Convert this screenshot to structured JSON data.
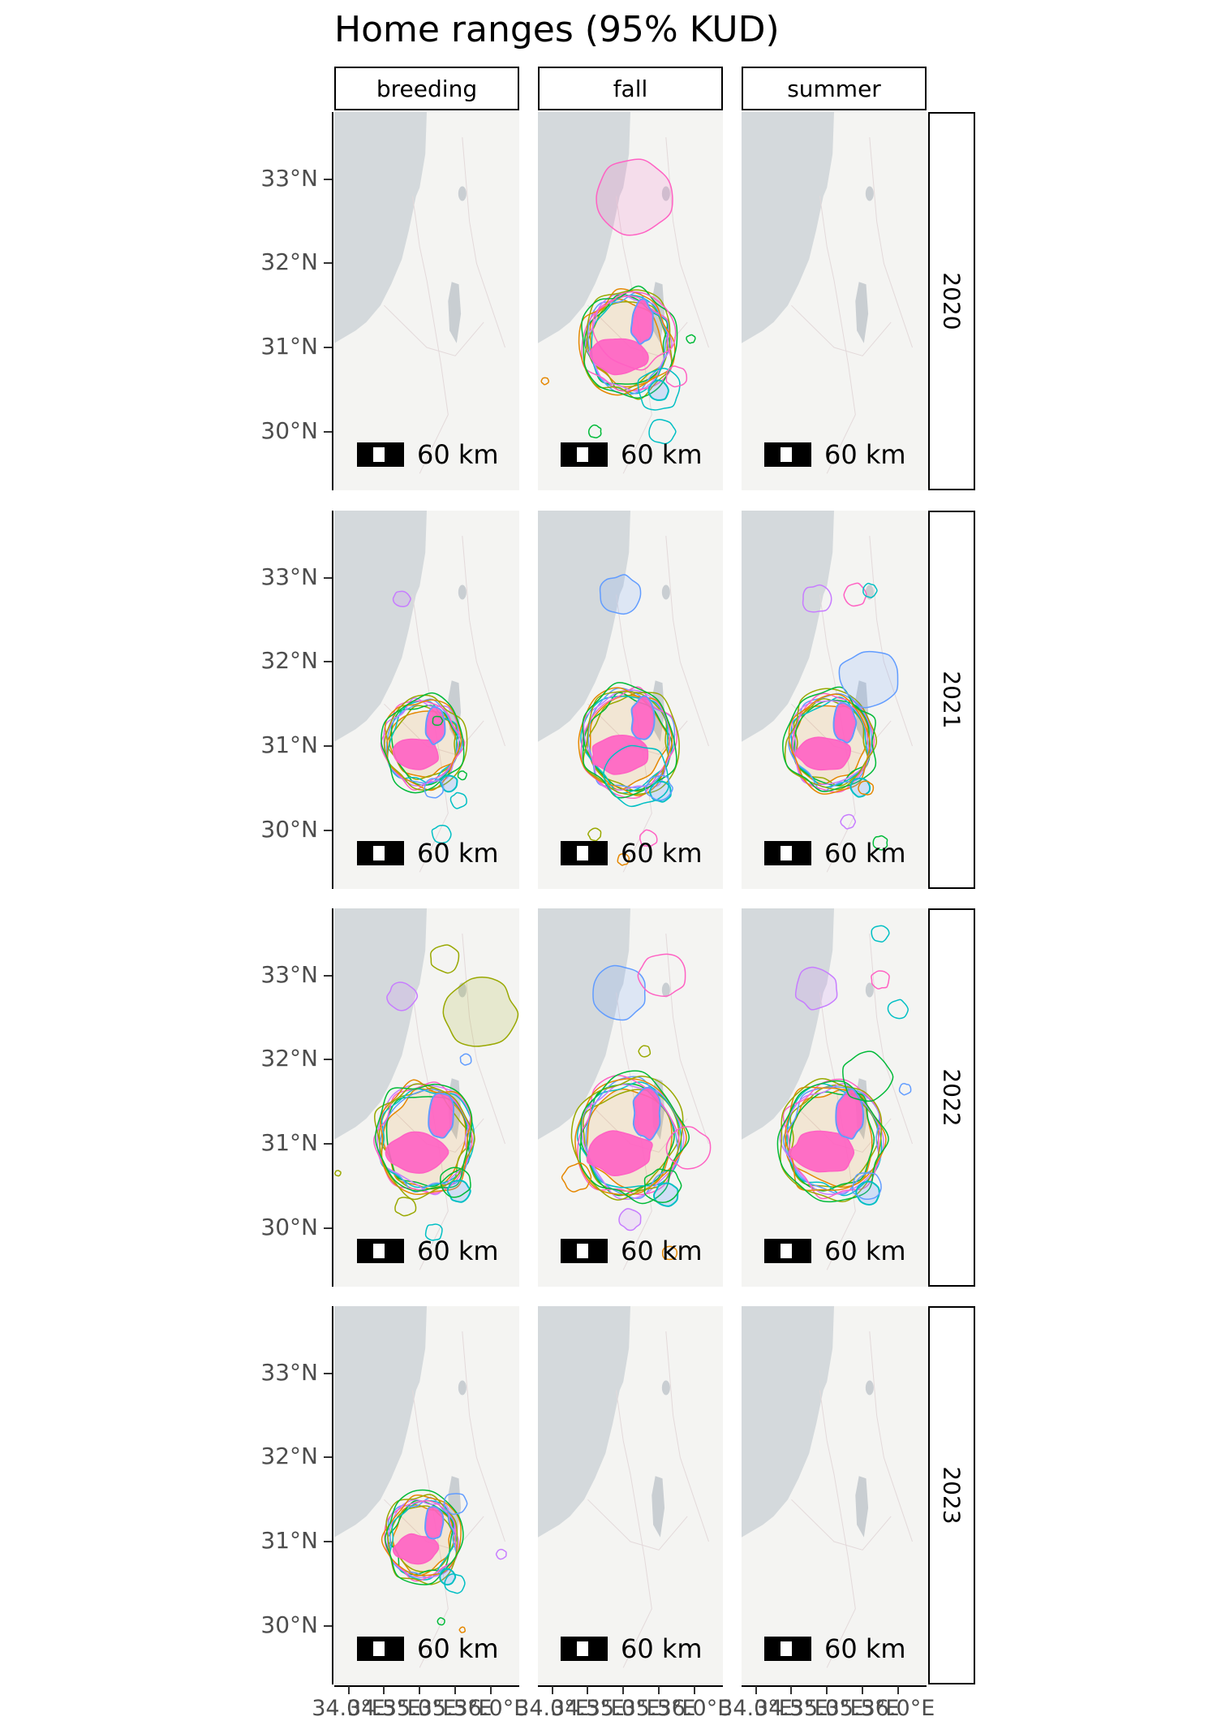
{
  "title": "Home ranges (95% KUD)",
  "facets": {
    "columns": [
      "breeding",
      "fall",
      "summer"
    ],
    "rows": [
      "2020",
      "2021",
      "2022",
      "2023"
    ]
  },
  "scalebar_label": "60 km",
  "axes": {
    "y_labels": [
      "33°N",
      "32°N",
      "31°N",
      "30°N"
    ],
    "y_values": [
      33,
      32,
      31,
      30
    ],
    "x_labels": [
      "34.0°E",
      "34.5°E",
      "35.0°E",
      "35.5°E",
      "36.0°E"
    ],
    "x_values": [
      34.0,
      34.5,
      35.0,
      35.5,
      36.0
    ]
  },
  "map": {
    "lon_range": [
      33.8,
      36.4
    ],
    "lat_range": [
      29.3,
      33.8
    ],
    "land_color": "#f4f4f2",
    "sea_color": "#d4d9dc",
    "water_body_color": "#c9ced2"
  },
  "colors": {
    "orange": "#E58700",
    "olive": "#99A800",
    "green": "#00BA38",
    "teal": "#00BFC4",
    "blue": "#619CFF",
    "purple": "#C77CFF",
    "pink": "#FF61C3",
    "core_fill": "#FF61C3"
  },
  "chart_data": {
    "type": "map",
    "title": "Home ranges (95% KUD)",
    "facet_rows": [
      "2020",
      "2021",
      "2022",
      "2023"
    ],
    "facet_columns": [
      "breeding",
      "fall",
      "summer"
    ],
    "core_range_center": {
      "lon": 34.95,
      "lat": 30.95
    },
    "scale_bar_km": 60,
    "panels": [
      {
        "row": "2020",
        "col": "breeding",
        "has_ranges": false,
        "extra_ranges": []
      },
      {
        "row": "2020",
        "col": "fall",
        "has_ranges": true,
        "core_scale": 1.0,
        "extra_ranges": [
          {
            "lon": 35.15,
            "lat": 32.8,
            "r": 0.55,
            "color": "pink",
            "fill": true
          },
          {
            "lon": 35.15,
            "lat": 31.2,
            "r": 0.55,
            "color": "pink",
            "fill": false
          },
          {
            "lon": 35.5,
            "lat": 30.5,
            "r": 0.3,
            "color": "teal",
            "fill": false
          },
          {
            "lon": 35.55,
            "lat": 30.0,
            "r": 0.18,
            "color": "teal",
            "fill": false
          },
          {
            "lon": 35.75,
            "lat": 30.65,
            "r": 0.15,
            "color": "pink",
            "fill": false
          },
          {
            "lon": 33.9,
            "lat": 30.6,
            "r": 0.05,
            "color": "orange",
            "fill": false
          },
          {
            "lon": 34.6,
            "lat": 30.0,
            "r": 0.09,
            "color": "green",
            "fill": false
          },
          {
            "lon": 35.95,
            "lat": 31.1,
            "r": 0.06,
            "color": "green",
            "fill": false
          }
        ]
      },
      {
        "row": "2020",
        "col": "summer",
        "has_ranges": false,
        "extra_ranges": []
      },
      {
        "row": "2021",
        "col": "breeding",
        "has_ranges": true,
        "core_scale": 0.85,
        "extra_ranges": [
          {
            "lon": 34.75,
            "lat": 32.75,
            "r": 0.12,
            "color": "purple",
            "fill": true
          },
          {
            "lon": 35.2,
            "lat": 30.5,
            "r": 0.14,
            "color": "blue",
            "fill": false
          },
          {
            "lon": 35.55,
            "lat": 30.35,
            "r": 0.11,
            "color": "teal",
            "fill": false
          },
          {
            "lon": 35.3,
            "lat": 29.95,
            "r": 0.13,
            "color": "teal",
            "fill": false
          },
          {
            "lon": 35.6,
            "lat": 30.65,
            "r": 0.06,
            "color": "green",
            "fill": false
          },
          {
            "lon": 35.25,
            "lat": 31.3,
            "r": 0.07,
            "color": "green",
            "fill": false
          }
        ]
      },
      {
        "row": "2021",
        "col": "fall",
        "has_ranges": true,
        "core_scale": 1.05,
        "extra_ranges": [
          {
            "lon": 34.95,
            "lat": 32.8,
            "r": 0.28,
            "color": "blue",
            "fill": true
          },
          {
            "lon": 35.2,
            "lat": 30.65,
            "r": 0.45,
            "color": "teal",
            "fill": false
          },
          {
            "lon": 35.35,
            "lat": 29.9,
            "r": 0.12,
            "color": "pink",
            "fill": false
          },
          {
            "lon": 34.6,
            "lat": 29.95,
            "r": 0.09,
            "color": "olive",
            "fill": false
          },
          {
            "lon": 35.0,
            "lat": 29.65,
            "r": 0.08,
            "color": "orange",
            "fill": false
          },
          {
            "lon": 35.5,
            "lat": 30.5,
            "r": 0.18,
            "color": "blue",
            "fill": false
          }
        ]
      },
      {
        "row": "2021",
        "col": "summer",
        "has_ranges": true,
        "core_scale": 0.95,
        "extra_ranges": [
          {
            "lon": 34.85,
            "lat": 32.75,
            "r": 0.2,
            "color": "purple",
            "fill": false
          },
          {
            "lon": 35.4,
            "lat": 32.8,
            "r": 0.16,
            "color": "pink",
            "fill": false
          },
          {
            "lon": 35.6,
            "lat": 32.85,
            "r": 0.1,
            "color": "teal",
            "fill": false
          },
          {
            "lon": 35.6,
            "lat": 31.8,
            "r": 0.42,
            "color": "blue",
            "fill": true
          },
          {
            "lon": 35.55,
            "lat": 30.5,
            "r": 0.1,
            "color": "orange",
            "fill": false
          },
          {
            "lon": 35.75,
            "lat": 29.85,
            "r": 0.1,
            "color": "green",
            "fill": false
          },
          {
            "lon": 35.3,
            "lat": 30.1,
            "r": 0.1,
            "color": "purple",
            "fill": false
          }
        ]
      },
      {
        "row": "2022",
        "col": "breeding",
        "has_ranges": true,
        "core_scale": 1.1,
        "extra_ranges": [
          {
            "lon": 34.75,
            "lat": 32.75,
            "r": 0.2,
            "color": "purple",
            "fill": true
          },
          {
            "lon": 35.35,
            "lat": 33.2,
            "r": 0.2,
            "color": "olive",
            "fill": false
          },
          {
            "lon": 35.85,
            "lat": 32.55,
            "r": 0.5,
            "color": "olive",
            "fill": true
          },
          {
            "lon": 35.5,
            "lat": 30.55,
            "r": 0.22,
            "color": "green",
            "fill": false
          },
          {
            "lon": 34.8,
            "lat": 30.25,
            "r": 0.14,
            "color": "olive",
            "fill": false
          },
          {
            "lon": 35.2,
            "lat": 29.95,
            "r": 0.12,
            "color": "teal",
            "fill": false
          },
          {
            "lon": 33.85,
            "lat": 30.65,
            "r": 0.04,
            "color": "olive",
            "fill": false
          },
          {
            "lon": 35.65,
            "lat": 32.0,
            "r": 0.08,
            "color": "blue",
            "fill": false
          }
        ]
      },
      {
        "row": "2022",
        "col": "fall",
        "has_ranges": true,
        "core_scale": 1.2,
        "extra_ranges": [
          {
            "lon": 34.95,
            "lat": 32.8,
            "r": 0.38,
            "color": "blue",
            "fill": true
          },
          {
            "lon": 35.55,
            "lat": 33.0,
            "r": 0.32,
            "color": "pink",
            "fill": false
          },
          {
            "lon": 35.9,
            "lat": 30.95,
            "r": 0.3,
            "color": "pink",
            "fill": false
          },
          {
            "lon": 34.35,
            "lat": 30.6,
            "r": 0.2,
            "color": "orange",
            "fill": false
          },
          {
            "lon": 35.55,
            "lat": 30.5,
            "r": 0.25,
            "color": "green",
            "fill": false
          },
          {
            "lon": 35.1,
            "lat": 30.1,
            "r": 0.15,
            "color": "purple",
            "fill": true
          },
          {
            "lon": 35.65,
            "lat": 29.7,
            "r": 0.1,
            "color": "orange",
            "fill": false
          },
          {
            "lon": 35.3,
            "lat": 32.1,
            "r": 0.08,
            "color": "olive",
            "fill": false
          }
        ]
      },
      {
        "row": "2022",
        "col": "summer",
        "has_ranges": true,
        "core_scale": 1.15,
        "extra_ranges": [
          {
            "lon": 34.85,
            "lat": 32.85,
            "r": 0.3,
            "color": "purple",
            "fill": true
          },
          {
            "lon": 35.75,
            "lat": 33.5,
            "r": 0.12,
            "color": "teal",
            "fill": false
          },
          {
            "lon": 35.75,
            "lat": 32.95,
            "r": 0.13,
            "color": "pink",
            "fill": false
          },
          {
            "lon": 36.0,
            "lat": 32.6,
            "r": 0.14,
            "color": "teal",
            "fill": false
          },
          {
            "lon": 35.55,
            "lat": 31.8,
            "r": 0.35,
            "color": "green",
            "fill": false
          },
          {
            "lon": 36.1,
            "lat": 31.65,
            "r": 0.08,
            "color": "blue",
            "fill": false
          },
          {
            "lon": 35.55,
            "lat": 30.5,
            "r": 0.2,
            "color": "blue",
            "fill": false
          }
        ]
      },
      {
        "row": "2023",
        "col": "breeding",
        "has_ranges": true,
        "core_scale": 0.8,
        "extra_ranges": [
          {
            "lon": 35.5,
            "lat": 30.5,
            "r": 0.14,
            "color": "teal",
            "fill": false
          },
          {
            "lon": 35.5,
            "lat": 31.45,
            "r": 0.16,
            "color": "blue",
            "fill": false
          },
          {
            "lon": 36.15,
            "lat": 30.85,
            "r": 0.07,
            "color": "purple",
            "fill": false
          },
          {
            "lon": 35.3,
            "lat": 30.05,
            "r": 0.05,
            "color": "green",
            "fill": false
          },
          {
            "lon": 35.6,
            "lat": 29.95,
            "r": 0.04,
            "color": "orange",
            "fill": false
          }
        ]
      },
      {
        "row": "2023",
        "col": "fall",
        "has_ranges": false,
        "extra_ranges": []
      },
      {
        "row": "2023",
        "col": "summer",
        "has_ranges": false,
        "extra_ranges": []
      }
    ]
  }
}
